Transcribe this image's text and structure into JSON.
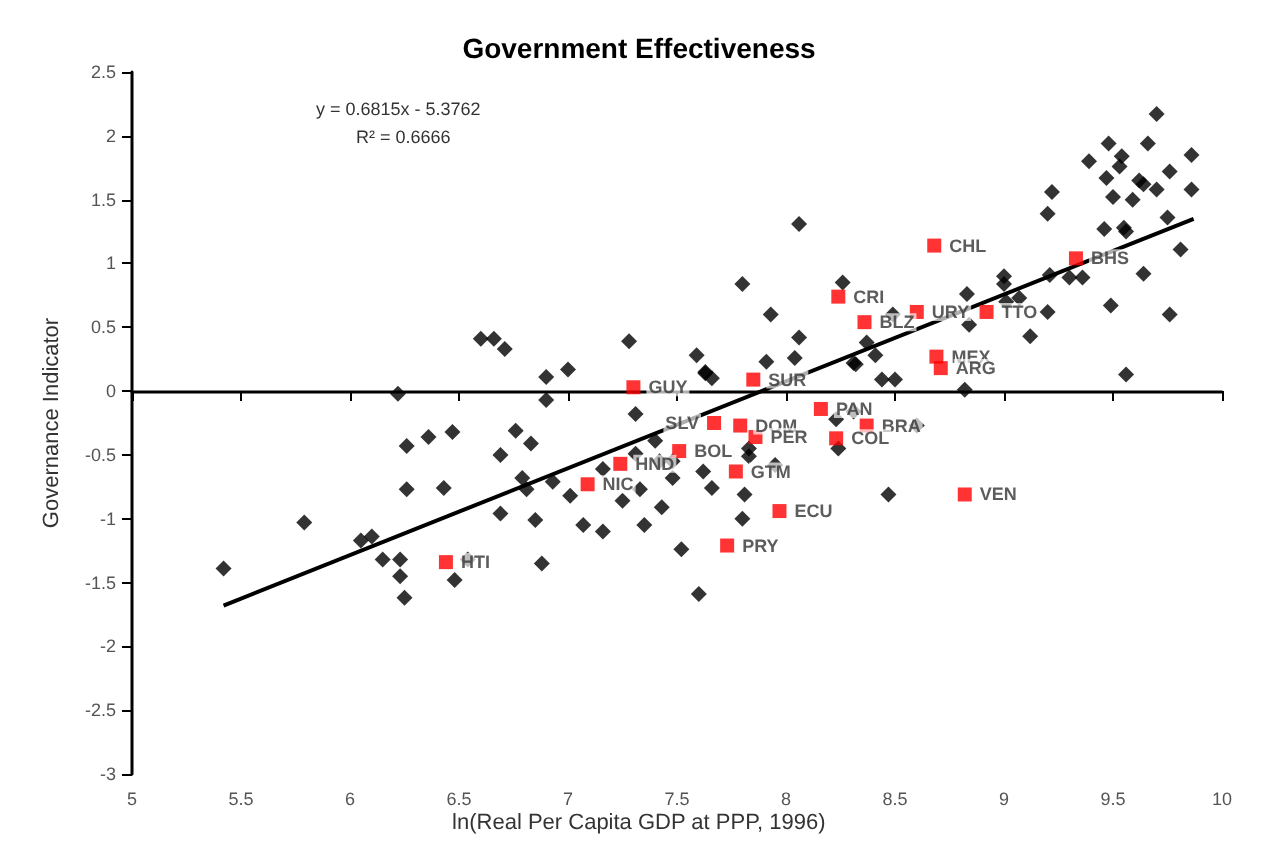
{
  "chart_data": {
    "type": "scatter",
    "title": "Government Effectiveness",
    "xlabel": "ln(Real Per Capita GDP at PPP, 1996)",
    "ylabel": "Governance Indicator",
    "annotations": [
      "y = 0.6815x - 5.3762",
      "R² = 0.6666"
    ],
    "xlim": [
      5,
      10
    ],
    "xticks": [
      5,
      5.5,
      6,
      6.5,
      7,
      7.5,
      8,
      8.5,
      9,
      9.5,
      10
    ],
    "ylim": [
      -3,
      2.5
    ],
    "yticks": [
      -3,
      -2.5,
      -2,
      -1.5,
      -1,
      -0.5,
      0,
      0.5,
      1,
      1.5,
      2,
      2.5
    ],
    "series": [
      {
        "marker": "diamond",
        "color": "#000000",
        "x": [
          5.42,
          5.79,
          6.05,
          6.1,
          6.15,
          6.23,
          6.23,
          6.25,
          6.26,
          6.26,
          6.22,
          6.36,
          6.47,
          6.43,
          6.54,
          6.48,
          6.69,
          6.76,
          6.83,
          6.79,
          6.81,
          6.69,
          6.85,
          6.93,
          6.88,
          7.01,
          7.07,
          7.16,
          7.16,
          7.25,
          7.31,
          7.33,
          7.31,
          6.9,
          6.6,
          6.66,
          6.71,
          6.9,
          7.0,
          7.28,
          7.4,
          7.48,
          7.42,
          7.48,
          7.43,
          7.35,
          7.62,
          7.66,
          7.52,
          7.6,
          7.81,
          7.8,
          7.83,
          7.83,
          7.95,
          8.23,
          8.31,
          8.24,
          8.47,
          8.6,
          8.82,
          9.56,
          7.63,
          8.44,
          8.5,
          8.32,
          7.59,
          7.63,
          7.66,
          7.8,
          7.91,
          7.93,
          8.06,
          8.04,
          8.06,
          8.26,
          8.31,
          8.37,
          8.41,
          8.49,
          8.83,
          8.84,
          9.0,
          9.0,
          9.07,
          9.01,
          9.12,
          9.2,
          9.2,
          9.22,
          9.21,
          9.3,
          9.36,
          9.39,
          9.48,
          9.47,
          9.5,
          9.46,
          9.54,
          9.53,
          9.55,
          9.56,
          9.59,
          9.62,
          9.64,
          9.66,
          9.7,
          9.7,
          9.76,
          9.75,
          9.86,
          9.86,
          9.81,
          9.64,
          9.76,
          9.49
        ],
        "values": [
          -1.39,
          -1.03,
          -1.17,
          -1.14,
          -1.32,
          -1.32,
          -1.45,
          -1.62,
          -0.43,
          -0.77,
          -0.02,
          -0.36,
          -0.32,
          -0.76,
          -1.32,
          -1.48,
          -0.5,
          -0.31,
          -0.41,
          -0.68,
          -0.77,
          -0.96,
          -1.01,
          -0.71,
          -1.35,
          -0.82,
          -1.05,
          -1.1,
          -0.61,
          -0.86,
          -0.49,
          -0.77,
          -0.18,
          -0.07,
          0.41,
          0.41,
          0.33,
          0.11,
          0.17,
          0.39,
          -0.39,
          -0.55,
          -0.55,
          -0.68,
          -0.91,
          -1.05,
          -0.63,
          -0.76,
          -1.24,
          -1.59,
          -0.81,
          -1.0,
          -0.45,
          -0.51,
          -0.58,
          -0.22,
          -0.16,
          -0.45,
          -0.81,
          -0.27,
          0.01,
          0.13,
          0.14,
          0.09,
          0.09,
          0.21,
          0.28,
          0.15,
          0.1,
          0.84,
          0.23,
          0.6,
          0.42,
          0.26,
          1.31,
          0.85,
          0.22,
          0.38,
          0.28,
          0.6,
          0.76,
          0.52,
          0.9,
          0.84,
          0.73,
          0.7,
          0.43,
          0.62,
          1.39,
          1.56,
          0.91,
          0.89,
          0.89,
          1.8,
          1.94,
          1.67,
          1.52,
          1.27,
          1.84,
          1.76,
          1.28,
          1.25,
          1.5,
          1.65,
          1.62,
          1.94,
          1.58,
          2.17,
          1.72,
          1.36,
          1.85,
          1.58,
          1.11,
          0.92,
          0.6,
          0.67
        ]
      },
      {
        "marker": "square",
        "color": "#ff0000",
        "x": [
          7.3,
          7.85,
          8.24,
          8.36,
          8.6,
          8.92,
          8.68,
          9.33,
          8.69,
          8.71,
          8.16,
          8.37,
          8.23,
          7.67,
          7.79,
          7.86,
          7.51,
          7.24,
          7.77,
          7.09,
          7.97,
          8.82,
          7.73,
          6.44
        ],
        "values": [
          0.03,
          0.09,
          0.74,
          0.54,
          0.62,
          0.62,
          1.14,
          1.04,
          0.27,
          0.18,
          -0.14,
          -0.27,
          -0.37,
          -0.25,
          -0.27,
          -0.36,
          -0.47,
          -0.57,
          -0.63,
          -0.73,
          -0.94,
          -0.81,
          -1.21,
          -1.34
        ],
        "value_labels": [
          "GUY",
          "SUR",
          "CRI",
          "BLZ",
          "URY",
          "TTO",
          "CHL",
          "BHS",
          "MEX",
          "ARG",
          "PAN",
          "BRA",
          "COL",
          "SLV",
          "DOM",
          "PER",
          "BOL",
          "HND",
          "GTM",
          "NIC",
          "ECU",
          "VEN",
          "PRY",
          "HTI"
        ]
      },
      {
        "type": "line",
        "marker": "none",
        "color": "#000000",
        "x": [
          5.42,
          9.87
        ],
        "values": [
          -1.68,
          1.35
        ]
      }
    ]
  }
}
